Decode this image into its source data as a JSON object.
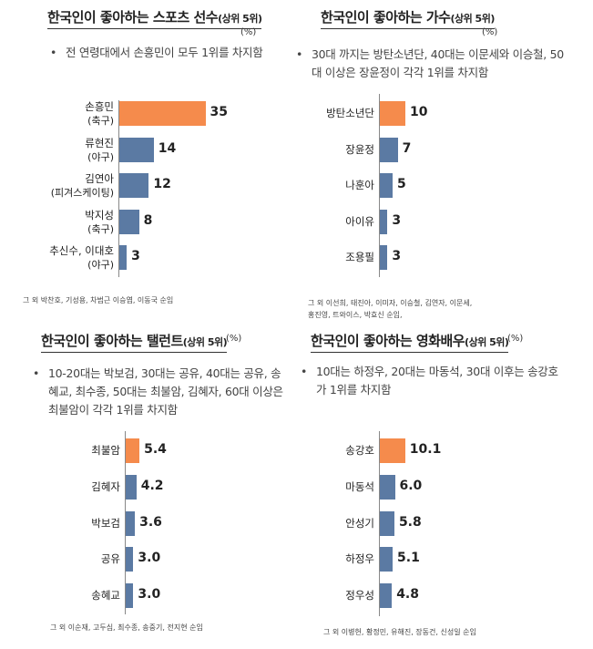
{
  "colors": {
    "highlight": "#F58B4C",
    "bar": "#5B7AA3"
  },
  "chart_data": [
    {
      "type": "bar",
      "title": "한국인이 좋아하는 스포츠 선수",
      "title_sub": "(상위 5위)",
      "unit": "(%)",
      "bullet": "전 연령대에서 손흥민이 모두 1위를 차지함",
      "categories": [
        "손흥민",
        "류현진",
        "김연아",
        "박지성",
        "추신수, 이대호"
      ],
      "sublabels": [
        "(축구)",
        "(야구)",
        "(피겨스케이팅)",
        "(축구)",
        "(야구)"
      ],
      "values": [
        35,
        14,
        12,
        8,
        3
      ],
      "value_labels": [
        "35",
        "14",
        "12",
        "8",
        "3"
      ],
      "footnote": [
        "그 외 박찬호, 기성용, 차범근 이승엽, 이동국 순임"
      ]
    },
    {
      "type": "bar",
      "title": "한국인이 좋아하는 가수",
      "title_sub": "(상위 5위)",
      "unit": "(%)",
      "bullet": "30대 까지는 방탄소년단, 40대는 이문세와 이승철, 50대 이상은 장윤정이 각각 1위를 차지함",
      "categories": [
        "방탄소년단",
        "장윤정",
        "나훈아",
        "아이유",
        "조용필"
      ],
      "values": [
        10,
        7,
        5,
        3,
        3
      ],
      "value_labels": [
        "10",
        "7",
        "5",
        "3",
        "3"
      ],
      "footnote": [
        "그 외 이선희, 태진아, 이미자, 이승철, 김연자, 이문세,",
        "홍진영, 트와이스, 박효신 순임,"
      ]
    },
    {
      "type": "bar",
      "title": "한국인이 좋아하는 탤런트",
      "title_sub": "(상위 5위)",
      "unit": "(%)",
      "bullet": "10-20대는 박보검, 30대는 공유, 40대는 공유, 송혜교, 최수종, 50대는 최불암, 김혜자, 60대 이상은 최불암이 각각 1위를 차지함",
      "categories": [
        "최불암",
        "김혜자",
        "박보검",
        "공유",
        "송혜교"
      ],
      "values": [
        5.4,
        4.2,
        3.6,
        3.0,
        3.0
      ],
      "value_labels": [
        "5.4",
        "4.2",
        "3.6",
        "3.0",
        "3.0"
      ],
      "footnote": [
        "그 외 이순재, 고두심, 최수종, 송중기, 전지현 순임"
      ]
    },
    {
      "type": "bar",
      "title": "한국인이 좋아하는 영화배우",
      "title_sub": "(상위 5위)",
      "unit": "(%)",
      "bullet": "10대는 하정우, 20대는 마동석, 30대 이후는 송강호가 1위를 차지함",
      "categories": [
        "송강호",
        "마동석",
        "안성기",
        "하정우",
        "정우성"
      ],
      "values": [
        10.1,
        6.0,
        5.8,
        5.1,
        4.8
      ],
      "value_labels": [
        "10.1",
        "6.0",
        "5.8",
        "5.1",
        "4.8"
      ],
      "footnote": [
        "그 외 이병헌, 황정민, 유해진, 장동건, 신성일 순임"
      ]
    }
  ]
}
